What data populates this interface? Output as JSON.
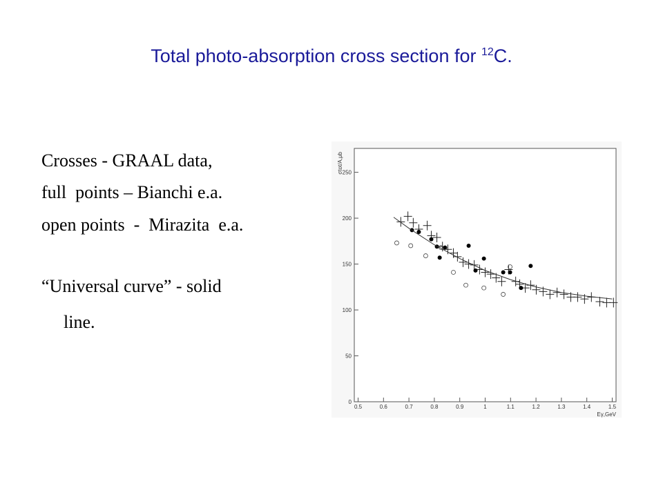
{
  "title": {
    "main": "Total photo-absorption cross section for ",
    "sup": "12",
    "end": "C."
  },
  "text": [
    "Crosses - GRAAL data,",
    "full  points – Bianchi e.a.",
    "open points  -  Mirazita  e.a.",
    "“Universal curve” - solid",
    "line."
  ],
  "chart_data": {
    "type": "scatter",
    "x_label": "Eγ,GeV",
    "y_label": "σtot/A,μb",
    "xlim": [
      0.485,
      1.515
    ],
    "ylim": [
      0,
      276
    ],
    "xticks": [
      0.5,
      0.6,
      0.7,
      0.8,
      0.9,
      1,
      1.1,
      1.2,
      1.3,
      1.4,
      1.5
    ],
    "yticks": [
      0,
      50,
      100,
      150,
      200,
      250
    ],
    "series": [
      {
        "marker": "plus",
        "color": "#222222",
        "x": [
          0.668,
          0.696,
          0.717,
          0.739,
          0.772,
          0.788,
          0.81,
          0.832,
          0.853,
          0.875,
          0.891,
          0.913,
          0.935,
          0.957,
          0.978,
          1.0,
          1.022,
          1.043,
          1.065,
          1.092,
          1.12,
          1.136,
          1.158,
          1.179,
          1.201,
          1.228,
          1.255,
          1.283,
          1.31,
          1.337,
          1.364,
          1.391,
          1.418,
          1.451,
          1.478,
          1.505
        ],
        "values": [
          196,
          202,
          195,
          188,
          192,
          181,
          179,
          169,
          166,
          162,
          158,
          152,
          150,
          149,
          144,
          141,
          139,
          135,
          131,
          144,
          131,
          128,
          124,
          127,
          122,
          120,
          117,
          119,
          117,
          114,
          114,
          112,
          114,
          109,
          108,
          108
        ]
      },
      {
        "marker": "filled",
        "color": "#000000",
        "x": [
          0.712,
          0.739,
          0.788,
          0.81,
          0.842,
          0.821,
          0.935,
          0.962,
          0.995,
          1.071,
          1.098,
          1.141,
          1.179
        ],
        "values": [
          187,
          185,
          177,
          169,
          168,
          157,
          170,
          143,
          156,
          141,
          141,
          124,
          148
        ]
      },
      {
        "marker": "open",
        "color": "#444444",
        "x": [
          0.652,
          0.707,
          0.766,
          0.826,
          0.875,
          0.924,
          0.995,
          1.098,
          1.071
        ],
        "values": [
          173,
          170,
          159,
          168,
          141,
          127,
          124,
          147,
          117
        ]
      },
      {
        "marker": "line",
        "color": "#333333",
        "x": [
          0.64,
          0.7,
          0.8,
          0.9,
          1.0,
          1.1,
          1.2,
          1.3,
          1.4,
          1.5
        ],
        "values": [
          201,
          189,
          171,
          156,
          143,
          133,
          125,
          119,
          115,
          112
        ]
      }
    ]
  }
}
